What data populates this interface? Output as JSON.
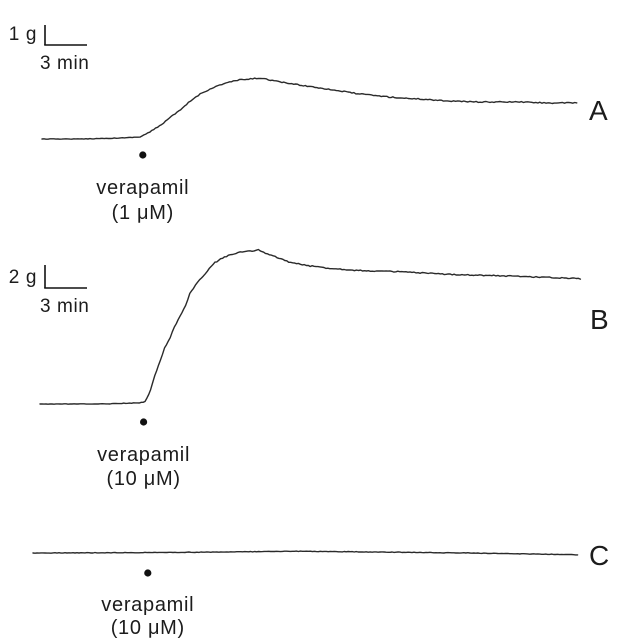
{
  "chart_data": [
    {
      "type": "line",
      "panel": "A",
      "scale_bar": {
        "y_label": "1 g",
        "y_value_g": 1,
        "x_label": "3 min",
        "x_value_min": 3
      },
      "treatment": {
        "label": "verapamil",
        "concentration": "(1 μM)",
        "time_min": 7.2
      },
      "points": [
        [
          0,
          0
        ],
        [
          2.7,
          0
        ],
        [
          5.6,
          0.05
        ],
        [
          7.0,
          0.1
        ],
        [
          7.7,
          0.35
        ],
        [
          8.4,
          0.65
        ],
        [
          9.1,
          1.05
        ],
        [
          9.9,
          1.45
        ],
        [
          10.6,
          1.9
        ],
        [
          11.3,
          2.25
        ],
        [
          12.0,
          2.5
        ],
        [
          12.7,
          2.7
        ],
        [
          13.4,
          2.85
        ],
        [
          14.1,
          2.95
        ],
        [
          14.9,
          3.0
        ],
        [
          15.6,
          3.05
        ],
        [
          16.3,
          2.95
        ],
        [
          17.0,
          2.85
        ],
        [
          18.4,
          2.7
        ],
        [
          19.9,
          2.55
        ],
        [
          21.3,
          2.4
        ],
        [
          22.7,
          2.25
        ],
        [
          24.1,
          2.15
        ],
        [
          25.6,
          2.05
        ],
        [
          27.0,
          2.0
        ],
        [
          29.1,
          1.9
        ],
        [
          31.3,
          1.85
        ],
        [
          34.1,
          1.85
        ],
        [
          36.3,
          1.8
        ],
        [
          38.2,
          1.8
        ]
      ]
    },
    {
      "type": "line",
      "panel": "B",
      "scale_bar": {
        "y_label": "2 g",
        "y_value_g": 2,
        "x_label": "3 min",
        "x_value_min": 3
      },
      "treatment": {
        "label": "verapamil",
        "concentration": "(10 μM)",
        "time_min": 7.4
      },
      "points": [
        [
          0,
          0
        ],
        [
          4.3,
          0
        ],
        [
          7.1,
          0.1
        ],
        [
          7.5,
          0.2
        ],
        [
          7.9,
          1.2
        ],
        [
          8.2,
          2.5
        ],
        [
          8.6,
          3.8
        ],
        [
          8.9,
          4.9
        ],
        [
          9.3,
          5.8
        ],
        [
          9.6,
          6.7
        ],
        [
          10.0,
          7.6
        ],
        [
          10.4,
          8.6
        ],
        [
          10.7,
          9.6
        ],
        [
          11.1,
          10.3
        ],
        [
          11.4,
          10.8
        ],
        [
          11.8,
          11.3
        ],
        [
          12.1,
          11.8
        ],
        [
          12.5,
          12.3
        ],
        [
          12.9,
          12.6
        ],
        [
          13.6,
          13.0
        ],
        [
          14.3,
          13.2
        ],
        [
          15.0,
          13.3
        ],
        [
          15.6,
          13.4
        ],
        [
          16.1,
          13.1
        ],
        [
          16.8,
          12.8
        ],
        [
          17.9,
          12.3
        ],
        [
          19.3,
          12.0
        ],
        [
          20.7,
          11.8
        ],
        [
          22.9,
          11.6
        ],
        [
          25.7,
          11.5
        ],
        [
          28.6,
          11.3
        ],
        [
          31.4,
          11.2
        ],
        [
          34.3,
          11.1
        ],
        [
          36.4,
          11.0
        ],
        [
          38.6,
          10.9
        ]
      ]
    },
    {
      "type": "line",
      "panel": "C",
      "treatment": {
        "label": "verapamil",
        "concentration": "(10 μM)",
        "time_min": 8.2
      },
      "points": [
        [
          0,
          0
        ],
        [
          10,
          0.05
        ],
        [
          19.1,
          0.15
        ],
        [
          31.2,
          0
        ],
        [
          38.9,
          -0.15
        ]
      ]
    }
  ],
  "colors": {
    "trace": "#2a2a2a",
    "scale_bar": "#111111",
    "marker": "#111111",
    "background": "#ffffff"
  }
}
